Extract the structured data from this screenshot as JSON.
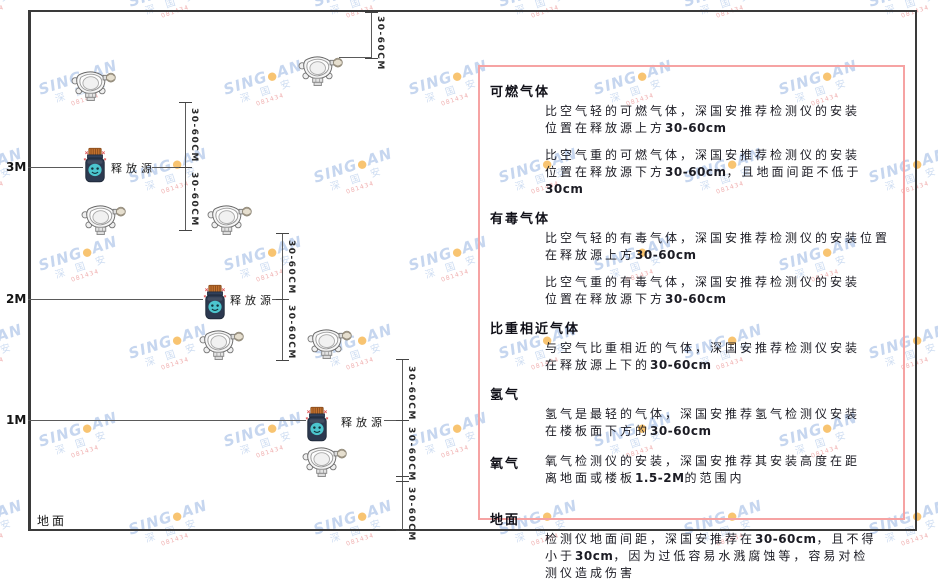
{
  "diagram": {
    "height_labels": [
      "3M",
      "2M",
      "1M"
    ],
    "ground_label": "地面",
    "source_label": "释放源",
    "dim_label": "30-60CM"
  },
  "panel": {
    "sections": [
      {
        "heading": "可燃气体",
        "inline": false,
        "paragraphs": [
          [
            "比空气轻的可燃气体，深国安推荐检测仪的安装",
            "位置在释放源上方30-60cm"
          ],
          [
            "比空气重的可燃气体，深国安推荐检测仪的安装",
            "位置在释放源下方30-60cm，且地面间距不低于",
            "30cm"
          ]
        ]
      },
      {
        "heading": "有毒气体",
        "inline": false,
        "paragraphs": [
          [
            "比空气轻的有毒气体，深国安推荐检测仪的安装位置",
            "在释放源上方30-60cm"
          ],
          [
            "比空气重的有毒气体，深国安推荐检测仪的安装",
            "位置在释放源下方30-60cm"
          ]
        ]
      },
      {
        "heading": "比重相近气体",
        "inline": false,
        "paragraphs": [
          [
            "与空气比重相近的气体，深国安推荐检测仪安装",
            "在释放源上下的30-60cm"
          ]
        ]
      },
      {
        "heading": "氢气",
        "inline": false,
        "paragraphs": [
          [
            "氢气是最轻的气体，深国安推荐氢气检测仪安装",
            "在楼板面下方的30-60cm"
          ]
        ]
      },
      {
        "heading": "氧气",
        "inline": true,
        "paragraphs": [
          [
            "氧气检测仪的安装，深国安推荐其安装高度在距",
            "离地面或楼板1.5-2M的范围内"
          ]
        ]
      },
      {
        "heading": "地面",
        "inline": false,
        "paragraphs": [
          [
            "检测仪地面间距，深国安推荐在30-60cm，且不得",
            "小于30cm，因为过低容易水溅腐蚀等，容易对检",
            "测仪造成伤害"
          ]
        ]
      }
    ]
  },
  "watermark": {
    "brand_pre": "SING",
    "brand_dot": "●",
    "brand_post": "AN",
    "cn": "深 国 安",
    "small": "081434"
  },
  "colors": {
    "panel_border": "#f6a3a3",
    "line": "#5a5a5a",
    "watermark_blue": "#6894d6",
    "watermark_orange": "#f39c12",
    "source_body": "#2c3950",
    "source_cap": "#c4722e",
    "source_face": "#4cc5ce"
  }
}
